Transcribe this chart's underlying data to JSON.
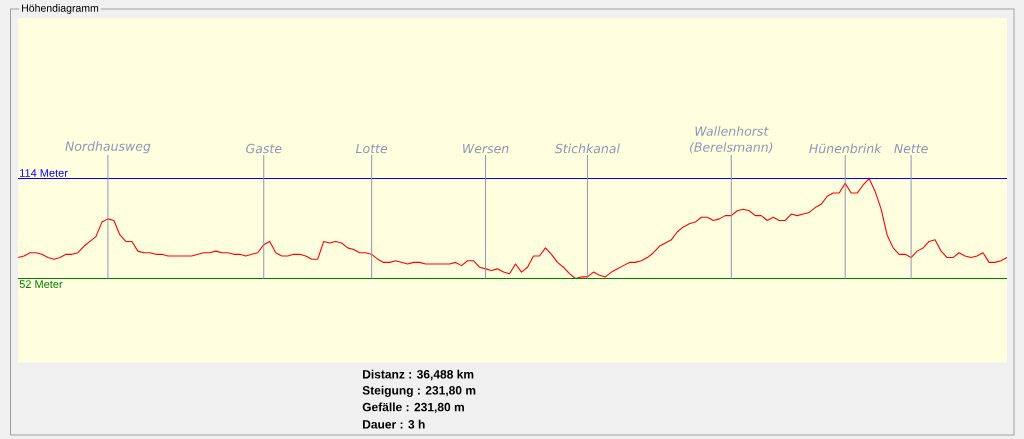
{
  "chart_data": {
    "type": "line",
    "title": "Höhendiagramm",
    "categories": [
      null,
      null,
      null,
      null,
      null,
      null,
      null,
      null,
      null,
      null,
      null,
      null,
      null,
      null,
      null,
      "Nordhausweg",
      null,
      null,
      null,
      null,
      null,
      null,
      null,
      null,
      null,
      null,
      null,
      null,
      null,
      null,
      null,
      null,
      null,
      null,
      null,
      null,
      null,
      null,
      null,
      null,
      null,
      "Gaste",
      null,
      null,
      null,
      null,
      null,
      null,
      null,
      null,
      null,
      null,
      null,
      null,
      null,
      null,
      null,
      null,
      null,
      "Lotte",
      null,
      null,
      null,
      null,
      null,
      null,
      null,
      null,
      null,
      null,
      null,
      null,
      null,
      null,
      null,
      null,
      null,
      null,
      "Wersen",
      null,
      null,
      null,
      null,
      null,
      null,
      null,
      null,
      null,
      null,
      null,
      null,
      null,
      null,
      null,
      null,
      "Stichkanal",
      null,
      null,
      null,
      null,
      null,
      null,
      null,
      null,
      null,
      null,
      null,
      null,
      null,
      null,
      null,
      null,
      null,
      null,
      null,
      null,
      null,
      null,
      null,
      "Wallenhorst (Berelsmann)",
      null,
      null,
      null,
      null,
      null,
      null,
      null,
      null,
      null,
      null,
      null,
      null,
      null,
      null,
      null,
      null,
      null,
      null,
      "Hünenbrink",
      null,
      null,
      null,
      null,
      null,
      null,
      null,
      null,
      null,
      null,
      "Nette",
      null,
      null,
      null,
      null,
      null,
      null,
      null,
      null,
      null,
      null,
      null,
      null,
      null,
      null,
      null,
      null
    ],
    "series": [
      {
        "color": "#ff0000",
        "values": [
          65,
          66,
          68,
          68,
          67,
          65,
          64,
          65,
          67,
          67,
          68,
          72,
          75,
          78,
          87,
          89,
          88,
          79,
          75,
          75,
          69,
          68,
          68,
          67,
          67,
          66,
          66,
          66,
          66,
          66,
          67,
          68,
          68,
          69,
          68,
          68,
          67,
          67,
          66,
          67,
          68,
          73,
          75,
          68,
          66,
          66,
          67,
          67,
          66,
          64,
          64,
          75,
          74,
          75,
          74,
          71,
          70,
          68,
          68,
          67,
          64,
          62,
          62,
          63,
          62,
          61,
          62,
          62,
          61,
          61,
          61,
          61,
          61,
          62,
          60,
          63,
          63,
          59,
          58,
          57,
          58,
          56,
          55,
          61,
          56,
          59,
          66,
          66,
          71,
          67,
          62,
          59,
          55,
          52,
          53,
          53,
          56,
          54,
          53,
          56,
          58,
          60,
          62,
          62,
          63,
          65,
          68,
          72,
          74,
          76,
          81,
          84,
          86,
          87,
          90,
          90,
          88,
          89,
          91,
          91,
          94,
          95,
          94,
          91,
          91,
          88,
          90,
          88,
          88,
          92,
          91,
          92,
          93,
          96,
          98,
          103,
          105,
          105,
          111,
          105,
          105,
          110,
          114,
          106,
          95,
          79,
          71,
          67,
          67,
          65,
          69,
          71,
          75,
          76,
          69,
          65,
          65,
          68,
          66,
          65,
          66,
          68,
          62,
          62,
          63,
          65
        ]
      }
    ],
    "ylim": [
      0,
      128.6
    ],
    "ref_lines": [
      {
        "axis": "y",
        "value": 114,
        "label": "114 Meter",
        "color": "#0000ff"
      },
      {
        "axis": "y",
        "value": 52,
        "label": "52 Meter",
        "color": "#008000"
      },
      {
        "axis": "x",
        "value": "Nordhausweg",
        "color": "#8c96b4"
      },
      {
        "axis": "x",
        "value": "Gaste",
        "color": "#8c96b4"
      },
      {
        "axis": "x",
        "value": "Lotte",
        "color": "#8c96b4"
      },
      {
        "axis": "x",
        "value": "Wersen",
        "color": "#8c96b4"
      },
      {
        "axis": "x",
        "value": "Stichkanal",
        "color": "#8c96b4"
      },
      {
        "axis": "x",
        "value": "Wallenhorst (Berelsmann)",
        "color": "#8c96b4"
      },
      {
        "axis": "x",
        "value": "Hünenbrink",
        "color": "#8c96b4"
      },
      {
        "axis": "x",
        "value": "Nette",
        "color": "#8c96b4"
      }
    ],
    "annotations": [
      "Distanz : 36,488 km",
      "Steigung : 231,80 m",
      "Gefälle : 231,80 m",
      "Dauer : 3 h"
    ]
  }
}
